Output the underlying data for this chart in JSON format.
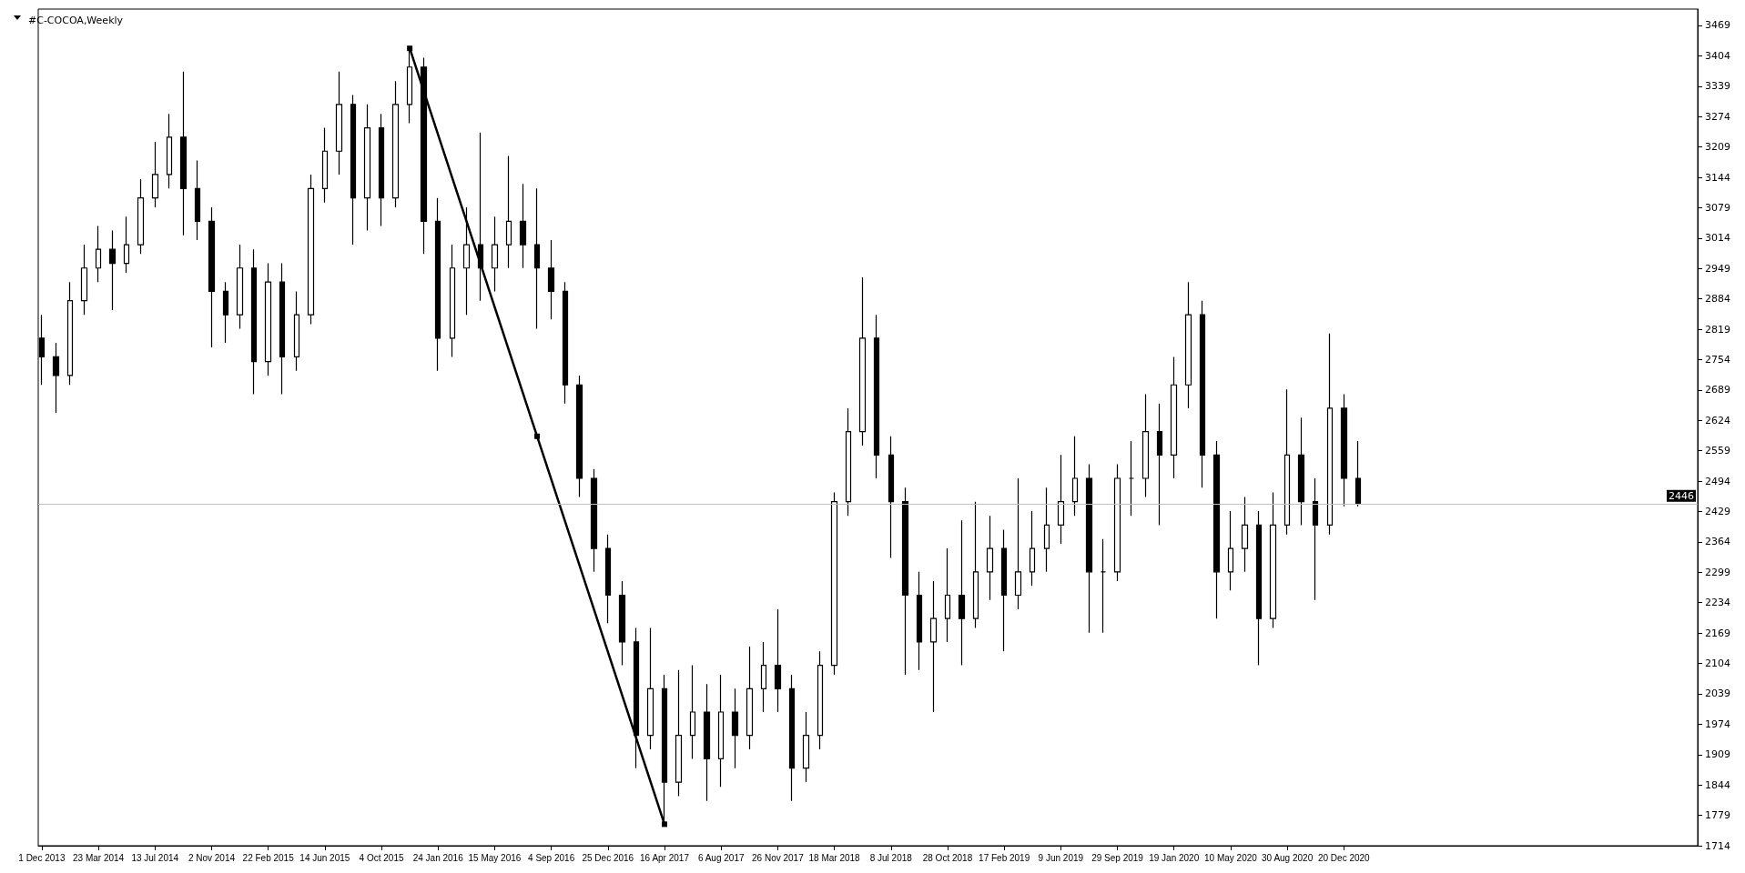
{
  "chart_data": {
    "type": "candlestick",
    "title": "#C-COCOA,Weekly",
    "grid": false,
    "marker": "square",
    "xlim": [
      "2013-11-24",
      "2022-11-20"
    ],
    "xticks": [
      {
        "value": "2013-12-01",
        "label": "1 Dec 2013"
      },
      {
        "value": "2014-03-23",
        "label": "23 Mar 2014"
      },
      {
        "value": "2014-07-13",
        "label": "13 Jul 2014"
      },
      {
        "value": "2014-11-02",
        "label": "2 Nov 2014"
      },
      {
        "value": "2015-02-22",
        "label": "22 Feb 2015"
      },
      {
        "value": "2015-06-14",
        "label": "14 Jun 2015"
      },
      {
        "value": "2015-10-04",
        "label": "4 Oct 2015"
      },
      {
        "value": "2016-01-24",
        "label": "24 Jan 2016"
      },
      {
        "value": "2016-05-15",
        "label": "15 May 2016"
      },
      {
        "value": "2016-09-04",
        "label": "4 Sep 2016"
      },
      {
        "value": "2016-12-25",
        "label": "25 Dec 2016"
      },
      {
        "value": "2017-04-16",
        "label": "16 Apr 2017"
      },
      {
        "value": "2017-08-06",
        "label": "6 Aug 2017"
      },
      {
        "value": "2017-11-26",
        "label": "26 Nov 2017"
      },
      {
        "value": "2018-03-18",
        "label": "18 Mar 2018"
      },
      {
        "value": "2018-07-08",
        "label": "8 Jul 2018"
      },
      {
        "value": "2018-10-28",
        "label": "28 Oct 2018"
      },
      {
        "value": "2019-02-17",
        "label": "17 Feb 2019"
      },
      {
        "value": "2019-06-09",
        "label": "9 Jun 2019"
      },
      {
        "value": "2019-09-29",
        "label": "29 Sep 2019"
      },
      {
        "value": "2020-01-19",
        "label": "19 Jan 2020"
      },
      {
        "value": "2020-05-10",
        "label": "10 May 2020"
      },
      {
        "value": "2020-08-30",
        "label": "30 Aug 2020"
      },
      {
        "value": "2020-12-20",
        "label": "20 Dec 2020"
      }
    ],
    "ylim": [
      1714,
      3504
    ],
    "yticks": [
      1714,
      1779,
      1844,
      1909,
      1974,
      2039,
      2104,
      2169,
      2234,
      2299,
      2364,
      2429,
      2494,
      2559,
      2624,
      2689,
      2754,
      2819,
      2884,
      2949,
      3014,
      3079,
      3144,
      3209,
      3274,
      3339,
      3404,
      3469
    ],
    "ref_lines": [
      {
        "axis": "y",
        "value": 2446,
        "label": "2446",
        "color": "#c0c0c0"
      }
    ],
    "series": [
      {
        "color": "#000000",
        "x": [
          "2013-12-01",
          "2013-12-29",
          "2014-01-26",
          "2014-02-23",
          "2014-03-23",
          "2014-04-20",
          "2014-05-18",
          "2014-06-15",
          "2014-07-13",
          "2014-08-10",
          "2014-09-07",
          "2014-10-05",
          "2014-11-02",
          "2014-11-30",
          "2014-12-28",
          "2015-01-25",
          "2015-02-22",
          "2015-03-22",
          "2015-04-19",
          "2015-05-17",
          "2015-06-14",
          "2015-07-12",
          "2015-08-09",
          "2015-09-06",
          "2015-10-04",
          "2015-11-01",
          "2015-11-29",
          "2015-12-27",
          "2016-01-24",
          "2016-02-21",
          "2016-03-20",
          "2016-04-17",
          "2016-05-15",
          "2016-06-12",
          "2016-07-10",
          "2016-08-07",
          "2016-09-04",
          "2016-10-02",
          "2016-10-30",
          "2016-11-27",
          "2016-12-25",
          "2017-01-22",
          "2017-02-19",
          "2017-03-19",
          "2017-04-16",
          "2017-05-14",
          "2017-06-11",
          "2017-07-09",
          "2017-08-06",
          "2017-09-03",
          "2017-10-01",
          "2017-10-29",
          "2017-11-26",
          "2017-12-24",
          "2018-01-21",
          "2018-02-18",
          "2018-03-18",
          "2018-04-15",
          "2018-05-13",
          "2018-06-10",
          "2018-07-08",
          "2018-08-05",
          "2018-09-02",
          "2018-09-30",
          "2018-10-28",
          "2018-11-25",
          "2018-12-23",
          "2019-01-20",
          "2019-02-17",
          "2019-03-17",
          "2019-04-14",
          "2019-05-12",
          "2019-06-09",
          "2019-07-07",
          "2019-08-04",
          "2019-09-01",
          "2019-09-29",
          "2019-10-27",
          "2019-11-24",
          "2019-12-22",
          "2020-01-19",
          "2020-02-16",
          "2020-03-15",
          "2020-04-12",
          "2020-05-10",
          "2020-06-07",
          "2020-07-05",
          "2020-08-02",
          "2020-08-30",
          "2020-09-27",
          "2020-10-25",
          "2020-11-22",
          "2020-12-20",
          "2021-01-17"
        ],
        "ohlc": [
          [
            2800,
            2850,
            2700,
            2760
          ],
          [
            2760,
            2790,
            2640,
            2720
          ],
          [
            2720,
            2920,
            2700,
            2880
          ],
          [
            2880,
            3000,
            2850,
            2950
          ],
          [
            2950,
            3040,
            2920,
            2990
          ],
          [
            2990,
            3030,
            2860,
            2960
          ],
          [
            2960,
            3060,
            2940,
            3000
          ],
          [
            3000,
            3140,
            2980,
            3100
          ],
          [
            3100,
            3220,
            3080,
            3150
          ],
          [
            3150,
            3280,
            3120,
            3230
          ],
          [
            3230,
            3370,
            3020,
            3120
          ],
          [
            3120,
            3180,
            3010,
            3050
          ],
          [
            3050,
            3080,
            2780,
            2900
          ],
          [
            2900,
            2920,
            2790,
            2850
          ],
          [
            2850,
            3000,
            2820,
            2950
          ],
          [
            2950,
            2990,
            2680,
            2750
          ],
          [
            2750,
            2960,
            2720,
            2920
          ],
          [
            2920,
            2960,
            2680,
            2760
          ],
          [
            2760,
            2900,
            2730,
            2850
          ],
          [
            2850,
            3150,
            2830,
            3120
          ],
          [
            3120,
            3250,
            3090,
            3200
          ],
          [
            3200,
            3370,
            3150,
            3300
          ],
          [
            3300,
            3320,
            3000,
            3100
          ],
          [
            3100,
            3300,
            3030,
            3250
          ],
          [
            3250,
            3280,
            3040,
            3100
          ],
          [
            3100,
            3350,
            3080,
            3300
          ],
          [
            3300,
            3420,
            3260,
            3380
          ],
          [
            3380,
            3400,
            2980,
            3050
          ],
          [
            3050,
            3100,
            2730,
            2800
          ],
          [
            2800,
            3000,
            2760,
            2950
          ],
          [
            2950,
            3080,
            2850,
            3000
          ],
          [
            3000,
            3240,
            2880,
            2950
          ],
          [
            2950,
            3060,
            2900,
            3000
          ],
          [
            3000,
            3190,
            2950,
            3050
          ],
          [
            3050,
            3130,
            2950,
            3000
          ],
          [
            3000,
            3120,
            2820,
            2950
          ],
          [
            2950,
            3010,
            2840,
            2900
          ],
          [
            2900,
            2920,
            2660,
            2700
          ],
          [
            2700,
            2720,
            2460,
            2500
          ],
          [
            2500,
            2520,
            2300,
            2350
          ],
          [
            2350,
            2380,
            2190,
            2250
          ],
          [
            2250,
            2280,
            2100,
            2150
          ],
          [
            2150,
            2180,
            1880,
            1950
          ],
          [
            1950,
            2180,
            1920,
            2050
          ],
          [
            2050,
            2080,
            1760,
            1850
          ],
          [
            1850,
            2090,
            1820,
            1950
          ],
          [
            1950,
            2100,
            1900,
            2000
          ],
          [
            2000,
            2060,
            1810,
            1900
          ],
          [
            1900,
            2080,
            1840,
            2000
          ],
          [
            2000,
            2050,
            1880,
            1950
          ],
          [
            1950,
            2140,
            1920,
            2050
          ],
          [
            2050,
            2150,
            2000,
            2100
          ],
          [
            2100,
            2220,
            2000,
            2050
          ],
          [
            2050,
            2080,
            1810,
            1880
          ],
          [
            1880,
            2000,
            1850,
            1950
          ],
          [
            1950,
            2130,
            1920,
            2100
          ],
          [
            2100,
            2470,
            2080,
            2450
          ],
          [
            2450,
            2650,
            2420,
            2600
          ],
          [
            2600,
            2930,
            2570,
            2800
          ],
          [
            2800,
            2850,
            2500,
            2550
          ],
          [
            2550,
            2590,
            2330,
            2450
          ],
          [
            2450,
            2480,
            2080,
            2250
          ],
          [
            2250,
            2300,
            2090,
            2150
          ],
          [
            2150,
            2280,
            2000,
            2200
          ],
          [
            2200,
            2350,
            2150,
            2250
          ],
          [
            2250,
            2410,
            2100,
            2200
          ],
          [
            2200,
            2450,
            2180,
            2300
          ],
          [
            2300,
            2420,
            2240,
            2350
          ],
          [
            2350,
            2390,
            2130,
            2250
          ],
          [
            2250,
            2500,
            2220,
            2300
          ],
          [
            2300,
            2430,
            2270,
            2350
          ],
          [
            2350,
            2480,
            2300,
            2400
          ],
          [
            2400,
            2550,
            2360,
            2450
          ],
          [
            2450,
            2590,
            2420,
            2500
          ],
          [
            2500,
            2530,
            2170,
            2300
          ],
          [
            2300,
            2370,
            2170,
            2300
          ],
          [
            2300,
            2530,
            2280,
            2500
          ],
          [
            2500,
            2580,
            2420,
            2500
          ],
          [
            2500,
            2680,
            2460,
            2600
          ],
          [
            2600,
            2660,
            2400,
            2550
          ],
          [
            2550,
            2760,
            2500,
            2700
          ],
          [
            2700,
            2920,
            2650,
            2850
          ],
          [
            2850,
            2880,
            2480,
            2550
          ],
          [
            2550,
            2580,
            2200,
            2300
          ],
          [
            2300,
            2430,
            2260,
            2350
          ],
          [
            2350,
            2460,
            2300,
            2400
          ],
          [
            2400,
            2430,
            2100,
            2200
          ],
          [
            2200,
            2470,
            2180,
            2400
          ],
          [
            2400,
            2690,
            2380,
            2550
          ],
          [
            2550,
            2630,
            2400,
            2450
          ],
          [
            2450,
            2500,
            2240,
            2400
          ],
          [
            2400,
            2810,
            2380,
            2650
          ],
          [
            2650,
            2680,
            2440,
            2500
          ],
          [
            2500,
            2580,
            2440,
            2446
          ]
        ]
      },
      {
        "type": "line",
        "color": "#000000",
        "x": [
          "2015-11-29",
          "2016-08-07",
          "2017-04-16"
        ],
        "values": [
          3420,
          2590,
          1760
        ]
      }
    ]
  }
}
